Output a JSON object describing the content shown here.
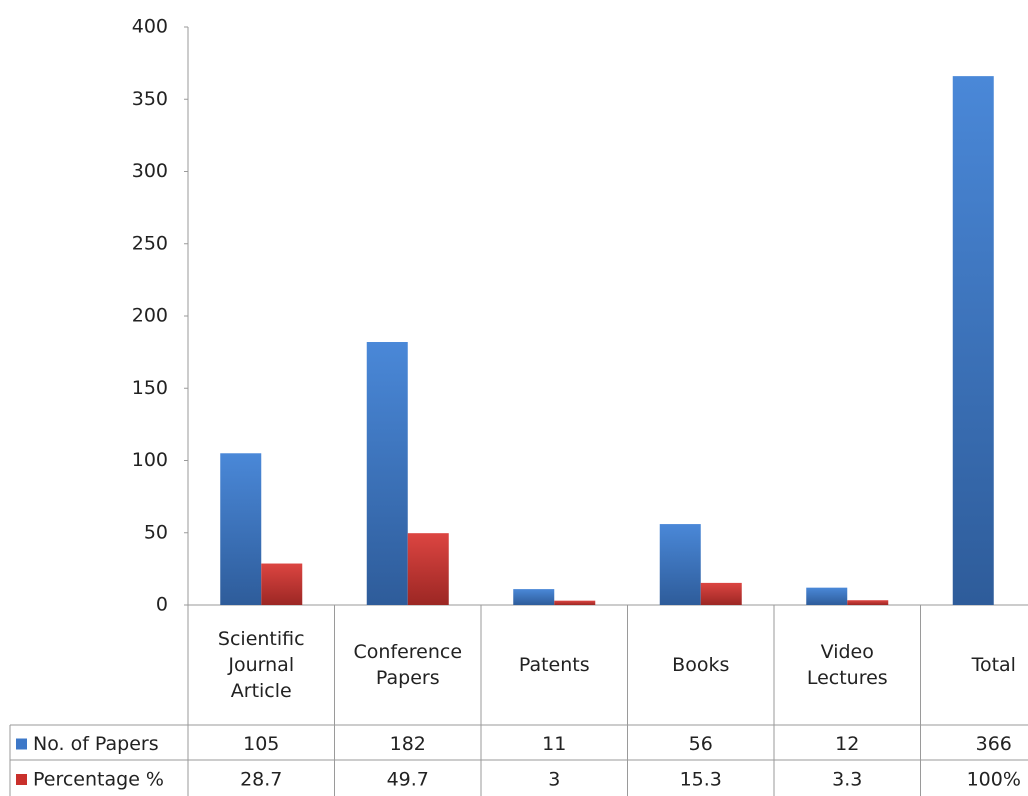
{
  "chart_data": {
    "type": "bar",
    "categories": [
      "Scientific Journal Article",
      "Conference Papers",
      "Patents",
      "Books",
      "Video Lectures",
      "Total"
    ],
    "series": [
      {
        "name": "No. of Papers",
        "color": "#3d78c8",
        "values": [
          105,
          182,
          11,
          56,
          12,
          366
        ]
      },
      {
        "name": "Percentage %",
        "color": "#c9302c",
        "values": [
          28.7,
          49.7,
          3,
          15.3,
          3.3,
          null
        ],
        "value_labels": [
          "28.7",
          "49.7",
          "3",
          "15.3",
          "3.3",
          "100%"
        ]
      }
    ],
    "ylim": [
      0,
      400
    ],
    "yticks": [
      0,
      50,
      100,
      150,
      200,
      250,
      300,
      350,
      400
    ],
    "grid": false,
    "legend": "data-table"
  }
}
